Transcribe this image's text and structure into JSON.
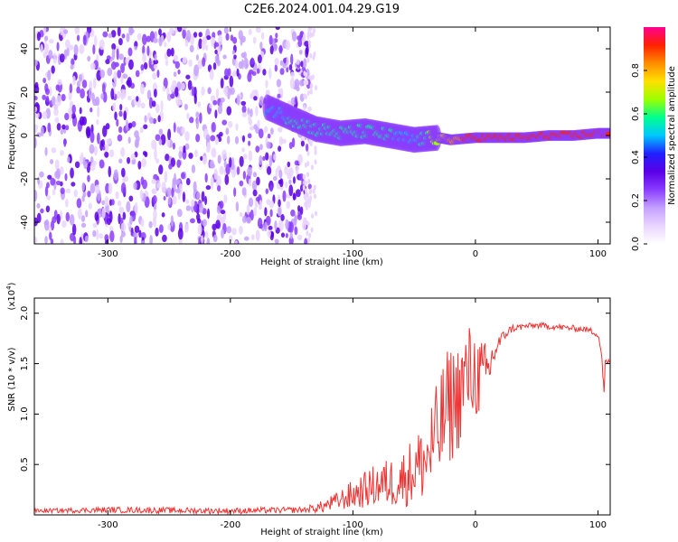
{
  "title": "C2E6.2024.001.04.29.G19",
  "chart_data": [
    {
      "type": "heatmap",
      "xlabel": "Height of straight line (km)",
      "ylabel": "Frequency (Hz)",
      "xlim": [
        -360,
        110
      ],
      "ylim": [
        -50,
        50
      ],
      "xticks": [
        -300,
        -200,
        -100,
        0,
        100
      ],
      "yticks": [
        -40,
        -20,
        0,
        20,
        40
      ],
      "colorbar": {
        "label": "Normalized spectral amplitude",
        "range": [
          0.0,
          1.0
        ],
        "ticks": [
          "0.0",
          "0.2",
          "0.4",
          "0.6",
          "0.8"
        ],
        "colors": [
          "#ffffff",
          "#e9d5ff",
          "#c4a0ff",
          "#8a3cff",
          "#5a00e6",
          "#2020ff",
          "#00c8ff",
          "#00ff90",
          "#9cff00",
          "#ffe000",
          "#ff8c00",
          "#ff2000",
          "#ff0090"
        ]
      },
      "ridge": {
        "x": [
          -170,
          -150,
          -130,
          -110,
          -90,
          -70,
          -50,
          -30,
          -20,
          0,
          20,
          40,
          60,
          80,
          100,
          110
        ],
        "frequency_hz": [
          13,
          8,
          3,
          1,
          2,
          0,
          -2,
          -1,
          -2,
          -1,
          -1,
          -1,
          0,
          0,
          1,
          1
        ],
        "amplitude": [
          0.5,
          0.55,
          0.55,
          0.6,
          0.55,
          0.55,
          0.5,
          0.7,
          0.85,
          0.9,
          0.9,
          0.9,
          0.9,
          0.9,
          0.95,
          0.9
        ]
      },
      "noise_region_x": [
        -360,
        -135
      ]
    },
    {
      "type": "line",
      "xlabel": "Height of straight line (km)",
      "ylabel": "SNR (10 * v/v)",
      "y_multiplier": "(x10",
      "y_multiplier_exp": "4",
      "y_multiplier_close": ")",
      "xlim": [
        -360,
        110
      ],
      "ylim": [
        0,
        2.15
      ],
      "xticks": [
        -300,
        -200,
        -100,
        0,
        100
      ],
      "yticks": [
        0.5,
        1.0,
        1.5,
        2.0
      ],
      "ytick_labels": [
        "0.5",
        "1.0",
        "1.5",
        "2.0"
      ],
      "series": [
        {
          "color": "#ee3333",
          "x": [
            -360,
            -300,
            -200,
            -140,
            -125,
            -110,
            -100,
            -90,
            -80,
            -70,
            -60,
            -50,
            -45,
            -40,
            -35,
            -30,
            -25,
            -20,
            -15,
            -10,
            -5,
            0,
            5,
            10,
            15,
            20,
            25,
            30,
            40,
            50,
            60,
            70,
            80,
            90,
            100,
            103,
            105,
            106,
            110
          ],
          "values": [
            0.04,
            0.05,
            0.04,
            0.05,
            0.08,
            0.15,
            0.2,
            0.25,
            0.3,
            0.32,
            0.35,
            0.45,
            0.5,
            0.55,
            0.7,
            0.8,
            1.0,
            1.1,
            1.15,
            1.3,
            1.4,
            1.4,
            1.35,
            1.4,
            1.6,
            1.72,
            1.8,
            1.85,
            1.87,
            1.88,
            1.87,
            1.86,
            1.85,
            1.84,
            1.8,
            1.6,
            1.2,
            1.52,
            1.52
          ],
          "band": [
            0.02,
            0.03,
            0.03,
            0.03,
            0.06,
            0.1,
            0.15,
            0.18,
            0.22,
            0.25,
            0.28,
            0.35,
            0.38,
            0.42,
            0.5,
            0.55,
            0.6,
            0.6,
            0.55,
            0.55,
            0.5,
            0.45,
            0.4,
            0.3,
            0.15,
            0.08,
            0.05,
            0.04,
            0.03,
            0.03,
            0.03,
            0.03,
            0.03,
            0.03,
            0.04,
            0.05,
            0.05,
            0.03,
            0.02
          ]
        }
      ]
    }
  ]
}
